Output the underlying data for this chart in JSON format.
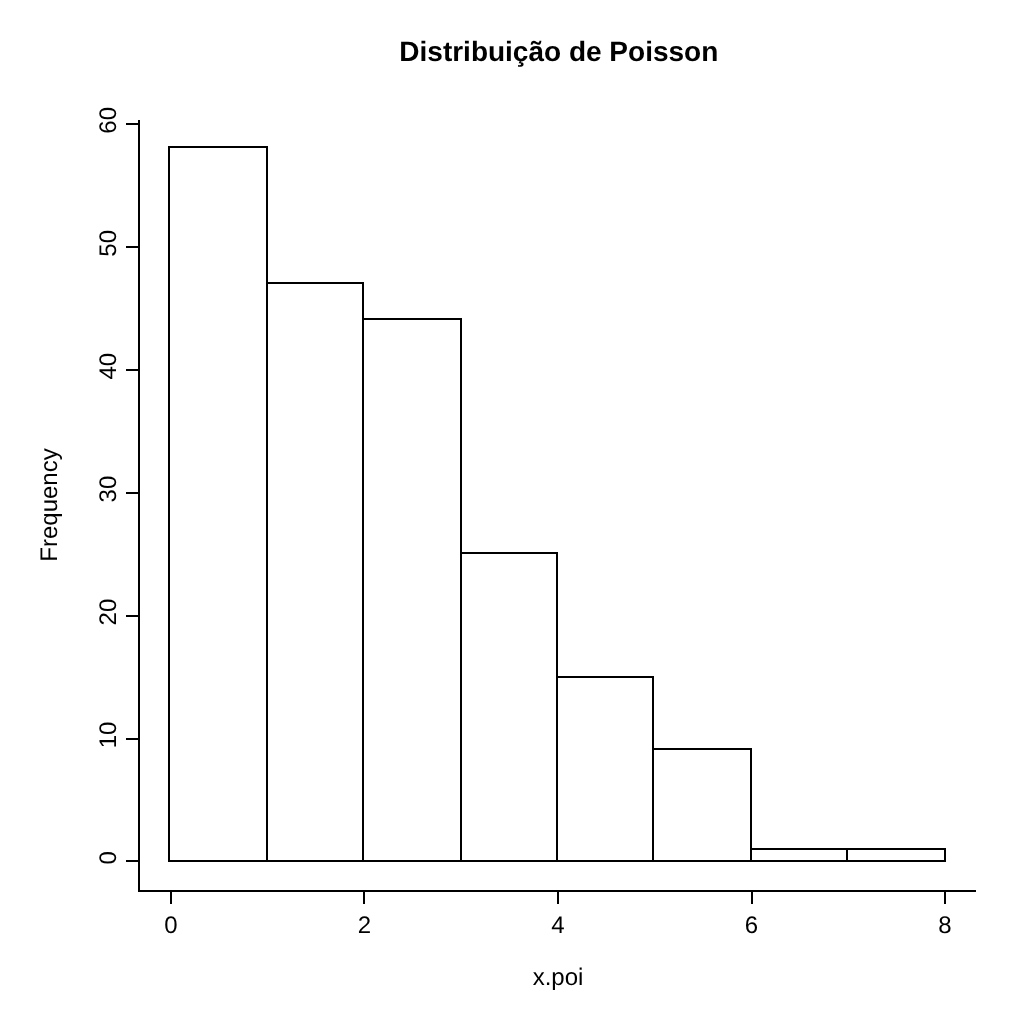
{
  "chart_data": {
    "type": "histogram",
    "title": "Distribuição de Poisson",
    "xlabel": "x.poi",
    "ylabel": "Frequency",
    "bins": [
      0,
      1,
      2,
      3,
      4,
      5,
      6,
      7,
      8
    ],
    "values": [
      58,
      47,
      44,
      25,
      15,
      9,
      1,
      1
    ],
    "color": "#ffffff",
    "xlim": [
      -0.32,
      8.32
    ],
    "xticks": [
      0,
      2,
      4,
      6,
      8
    ],
    "ylim": [
      -2.32,
      60.32
    ],
    "yticks": [
      0,
      10,
      20,
      30,
      40,
      50,
      60
    ]
  }
}
